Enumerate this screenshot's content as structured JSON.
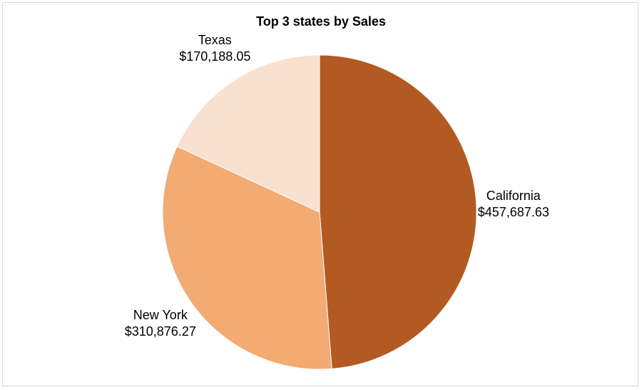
{
  "chart_data": {
    "type": "pie",
    "title": "Top 3 states by Sales",
    "categories": [
      "California",
      "New York",
      "Texas"
    ],
    "values": [
      457687.63,
      310876.27,
      170188.05
    ],
    "value_labels": [
      "$457,687.63",
      "$310,876.27",
      "$170,188.05"
    ],
    "colors": [
      "#b35a22",
      "#f2ab72",
      "#f9e1cf"
    ],
    "start_angle_deg": 0,
    "direction": "clockwise",
    "legend": "none",
    "data_labels": "outside"
  }
}
